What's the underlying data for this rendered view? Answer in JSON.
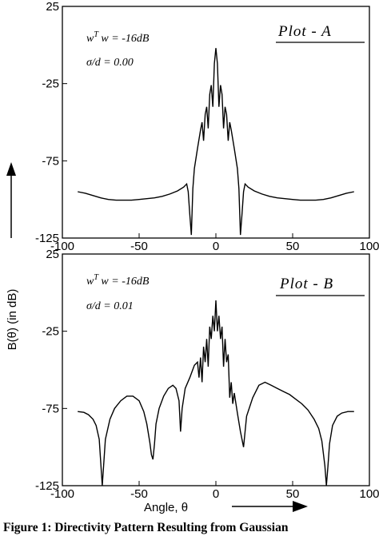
{
  "figure": {
    "caption": "Figure 1: Directivity Pattern Resulting from Gaussian",
    "ylabel": "B(θ)   (in dB)",
    "xlabel": "Angle,  θ"
  },
  "chart_data": [
    {
      "type": "line",
      "plot_label": "Plot - A",
      "annotations": [
        "w^T w  =  -16dB",
        "σ/d  =  0.00"
      ],
      "xlim": [
        -100,
        100
      ],
      "ylim": [
        -125,
        25
      ],
      "xticks": [
        "-100",
        "-50",
        "0",
        "50",
        "100"
      ],
      "yticks": [
        "25",
        "-25",
        "-75",
        "-125"
      ],
      "x": [
        -90,
        -85,
        -80,
        -75,
        -70,
        -65,
        -60,
        -55,
        -50,
        -45,
        -40,
        -35,
        -30,
        -25,
        -21,
        -19,
        -18,
        -17,
        -16,
        -15,
        -14,
        -12,
        -10,
        -9,
        -8,
        -7,
        -6,
        -5,
        -4,
        -3,
        -2,
        -1,
        0,
        1,
        2,
        3,
        4,
        5,
        6,
        7,
        8,
        9,
        10,
        12,
        14,
        15,
        16,
        17,
        18,
        19,
        21,
        25,
        30,
        35,
        40,
        45,
        50,
        55,
        60,
        65,
        70,
        75,
        80,
        85,
        90
      ],
      "y": [
        -95,
        -96,
        -97.5,
        -99,
        -100,
        -100.5,
        -100.5,
        -100.5,
        -100,
        -99.5,
        -99,
        -98,
        -96.5,
        -94.5,
        -92,
        -90,
        -95,
        -110,
        -123,
        -93,
        -80,
        -67,
        -55,
        -50,
        -62,
        -45,
        -40,
        -54,
        -32,
        -26,
        -40,
        -12,
        -2,
        -12,
        -40,
        -26,
        -32,
        -54,
        -40,
        -45,
        -62,
        -50,
        -55,
        -67,
        -80,
        -93,
        -123,
        -110,
        -95,
        -90,
        -92,
        -94.5,
        -96.5,
        -98,
        -99,
        -99.5,
        -100,
        -100.5,
        -100.5,
        -100.5,
        -100,
        -99,
        -97.5,
        -96,
        -95
      ]
    },
    {
      "type": "line",
      "plot_label": "Plot - B",
      "annotations": [
        "w^T w  =  -16dB",
        "σ/d  =  0.01"
      ],
      "xlim": [
        -100,
        100
      ],
      "ylim": [
        -125,
        25
      ],
      "xticks": [
        "-100",
        "-50",
        "0",
        "50",
        "100"
      ],
      "yticks": [
        "25",
        "-25",
        "-75",
        "-125"
      ],
      "x": [
        -90,
        -86,
        -83,
        -80,
        -78,
        -76,
        -75,
        -74,
        -72,
        -69,
        -66,
        -62,
        -58,
        -54,
        -50,
        -47,
        -45,
        -43,
        -42,
        -41,
        -40,
        -39,
        -37,
        -34,
        -31,
        -28,
        -26,
        -24,
        -23,
        -22,
        -20,
        -17,
        -14,
        -12,
        -11,
        -10,
        -9,
        -8,
        -7,
        -6,
        -5,
        -4,
        -3,
        -2,
        -1,
        0,
        1,
        2,
        3,
        4,
        5,
        6,
        7,
        8,
        9,
        10,
        11,
        12,
        14,
        16,
        18,
        20,
        24,
        28,
        32,
        36,
        40,
        44,
        48,
        52,
        56,
        60,
        64,
        67,
        69,
        71,
        72,
        73,
        74,
        76,
        79,
        82,
        86,
        90
      ],
      "y": [
        -77,
        -77.5,
        -79,
        -82,
        -86,
        -95,
        -110,
        -125,
        -95,
        -82,
        -75,
        -70,
        -67,
        -67,
        -70,
        -77,
        -85,
        -97,
        -105,
        -108,
        -98,
        -85,
        -75,
        -67,
        -62,
        -60,
        -62,
        -70,
        -90,
        -75,
        -62,
        -55,
        -47,
        -45,
        -55,
        -42,
        -58,
        -35,
        -45,
        -30,
        -48,
        -22,
        -30,
        -15,
        -25,
        -5,
        -25,
        -15,
        -30,
        -22,
        -48,
        -30,
        -45,
        -40,
        -68,
        -58,
        -72,
        -65,
        -78,
        -90,
        -100,
        -80,
        -68,
        -60,
        -58,
        -60,
        -62,
        -64,
        -66,
        -69,
        -72,
        -76,
        -82,
        -88,
        -96,
        -112,
        -125,
        -112,
        -98,
        -86,
        -80,
        -78,
        -77,
        -77
      ]
    }
  ]
}
